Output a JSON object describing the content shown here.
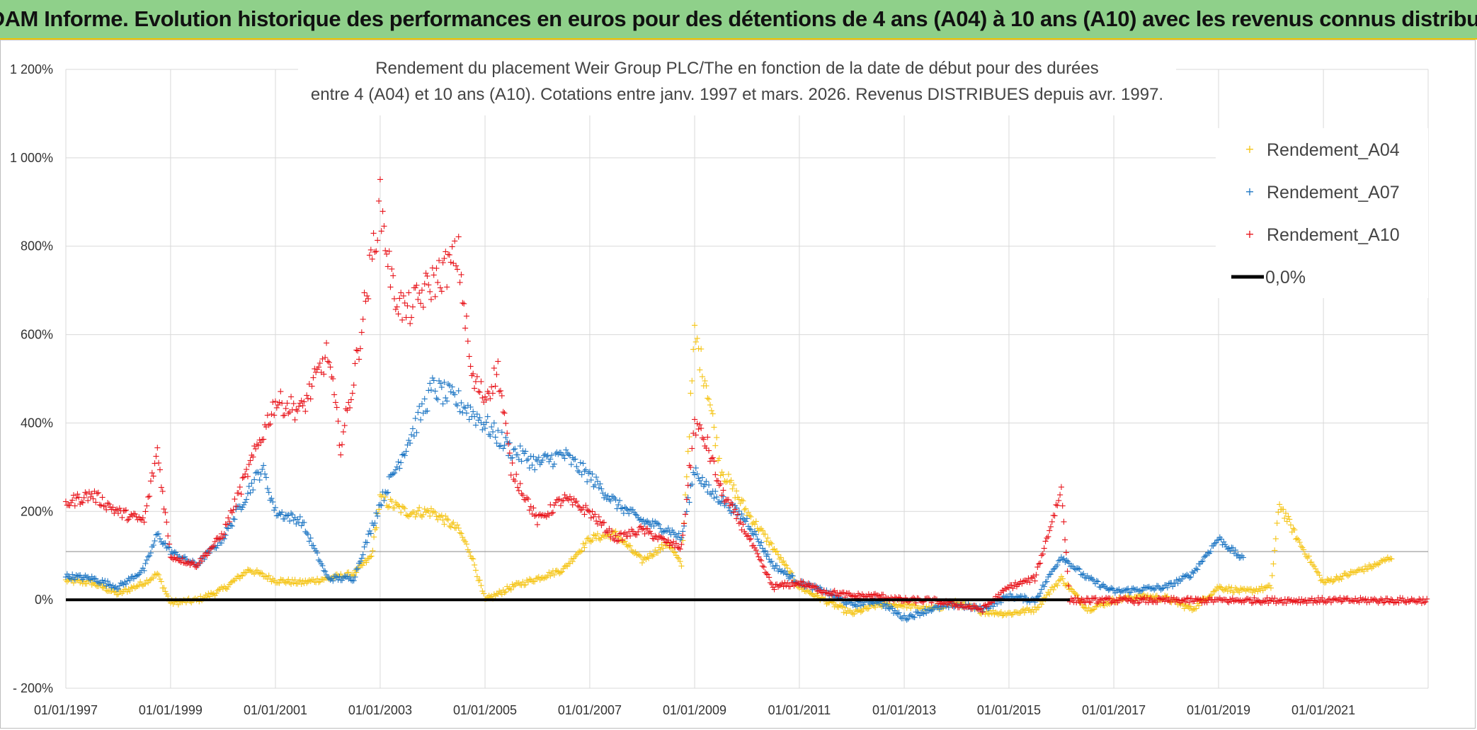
{
  "banner": {
    "title": "ADAM Informe. Evolution historique des performances en euros pour des détentions de 4 ans (A04) à 10 ans (A10) avec les revenus connus distribués"
  },
  "chart_data": {
    "type": "scatter",
    "title_line1": "Rendement du placement Weir Group PLC/The en fonction de la date de début pour des durées",
    "title_line2": "entre 4 (A04) et 10 ans (A10). Cotations entre janv. 1997 et mars. 2026. Revenus DISTRIBUES depuis avr. 1997.",
    "xlabel": "",
    "ylabel": "",
    "x_range": [
      "1997-01-01",
      "2023-01-01"
    ],
    "ylim": [
      -200,
      1200
    ],
    "y_ticks": [
      -200,
      0,
      200,
      400,
      600,
      800,
      1000,
      1200
    ],
    "y_tick_labels": [
      "- 200%",
      "0%",
      "200%",
      "400%",
      "600%",
      "800%",
      "1 000%",
      "1 200%"
    ],
    "x_tick_labels": [
      "01/01/1997",
      "01/01/1999",
      "01/01/2001",
      "01/01/2003",
      "01/01/2005",
      "01/01/2007",
      "01/01/2009",
      "01/01/2011",
      "01/01/2013",
      "01/01/2015",
      "01/01/2017",
      "01/01/2019",
      "01/01/2021"
    ],
    "grid": true,
    "legend_position": "top-right",
    "series": [
      {
        "name": "Rendement_A04",
        "color": "#f5c518",
        "points": [
          [
            "1997-01-01",
            45
          ],
          [
            "1997-07-01",
            40
          ],
          [
            "1998-01-01",
            15
          ],
          [
            "1998-07-01",
            40
          ],
          [
            "1998-10-01",
            60
          ],
          [
            "1999-01-01",
            -5
          ],
          [
            "1999-07-01",
            0
          ],
          [
            "2000-01-01",
            25
          ],
          [
            "2000-07-01",
            70
          ],
          [
            "2001-01-01",
            45
          ],
          [
            "2001-07-01",
            40
          ],
          [
            "2002-01-01",
            50
          ],
          [
            "2002-07-01",
            60
          ],
          [
            "2002-11-01",
            100
          ],
          [
            "2003-01-01",
            230
          ],
          [
            "2003-07-01",
            200
          ],
          [
            "2004-01-01",
            200
          ],
          [
            "2004-07-01",
            160
          ],
          [
            "2004-10-01",
            100
          ],
          [
            "2005-01-01",
            0
          ],
          [
            "2005-07-01",
            30
          ],
          [
            "2006-01-01",
            50
          ],
          [
            "2006-07-01",
            70
          ],
          [
            "2007-01-01",
            140
          ],
          [
            "2007-07-01",
            150
          ],
          [
            "2008-01-01",
            90
          ],
          [
            "2008-07-01",
            130
          ],
          [
            "2008-10-01",
            80
          ],
          [
            "2009-01-01",
            600
          ],
          [
            "2009-04-01",
            480
          ],
          [
            "2009-07-01",
            300
          ],
          [
            "2010-01-01",
            200
          ],
          [
            "2010-07-01",
            120
          ],
          [
            "2011-01-01",
            30
          ],
          [
            "2011-07-01",
            0
          ],
          [
            "2012-01-01",
            -30
          ],
          [
            "2012-07-01",
            -10
          ],
          [
            "2013-01-01",
            -10
          ],
          [
            "2013-07-01",
            -20
          ],
          [
            "2014-01-01",
            -5
          ],
          [
            "2014-07-01",
            -25
          ],
          [
            "2015-01-01",
            -30
          ],
          [
            "2015-07-01",
            -20
          ],
          [
            "2016-01-01",
            50
          ],
          [
            "2016-07-01",
            -20
          ],
          [
            "2017-01-01",
            0
          ],
          [
            "2017-07-01",
            10
          ],
          [
            "2018-01-01",
            5
          ],
          [
            "2018-07-01",
            -20
          ],
          [
            "2019-01-01",
            30
          ],
          [
            "2019-07-01",
            20
          ],
          [
            "2020-01-01",
            30
          ],
          [
            "2020-03-01",
            220
          ],
          [
            "2020-07-01",
            140
          ],
          [
            "2021-01-01",
            40
          ],
          [
            "2021-07-01",
            60
          ],
          [
            "2022-01-01",
            80
          ],
          [
            "2022-05-01",
            100
          ]
        ]
      },
      {
        "name": "Rendement_A07",
        "color": "#1f77c4",
        "points": [
          [
            "1997-01-01",
            55
          ],
          [
            "1997-07-01",
            50
          ],
          [
            "1998-01-01",
            30
          ],
          [
            "1998-07-01",
            70
          ],
          [
            "1998-10-01",
            150
          ],
          [
            "1999-01-01",
            110
          ],
          [
            "1999-07-01",
            80
          ],
          [
            "2000-01-01",
            140
          ],
          [
            "2000-07-01",
            250
          ],
          [
            "2000-10-01",
            300
          ],
          [
            "2001-01-01",
            200
          ],
          [
            "2001-07-01",
            180
          ],
          [
            "2002-01-01",
            50
          ],
          [
            "2002-07-01",
            50
          ],
          [
            "2003-01-01",
            220
          ],
          [
            "2003-07-01",
            350
          ],
          [
            "2004-01-01",
            480
          ],
          [
            "2004-07-01",
            450
          ],
          [
            "2005-01-01",
            400
          ],
          [
            "2005-07-01",
            340
          ],
          [
            "2006-01-01",
            310
          ],
          [
            "2006-07-01",
            330
          ],
          [
            "2007-01-01",
            280
          ],
          [
            "2007-07-01",
            220
          ],
          [
            "2008-01-01",
            180
          ],
          [
            "2008-07-01",
            160
          ],
          [
            "2008-10-01",
            140
          ],
          [
            "2009-01-01",
            300
          ],
          [
            "2009-04-01",
            250
          ],
          [
            "2009-07-01",
            230
          ],
          [
            "2010-01-01",
            180
          ],
          [
            "2010-07-01",
            80
          ],
          [
            "2011-01-01",
            40
          ],
          [
            "2011-07-01",
            20
          ],
          [
            "2012-01-01",
            -10
          ],
          [
            "2012-07-01",
            0
          ],
          [
            "2013-01-01",
            -40
          ],
          [
            "2013-07-01",
            -20
          ],
          [
            "2014-01-01",
            -10
          ],
          [
            "2014-07-01",
            -20
          ],
          [
            "2015-01-01",
            10
          ],
          [
            "2015-07-01",
            0
          ],
          [
            "2016-01-01",
            100
          ],
          [
            "2016-07-01",
            50
          ],
          [
            "2017-01-01",
            20
          ],
          [
            "2017-07-01",
            25
          ],
          [
            "2018-01-01",
            30
          ],
          [
            "2018-07-01",
            60
          ],
          [
            "2019-01-01",
            140
          ],
          [
            "2019-07-01",
            90
          ]
        ]
      },
      {
        "name": "Rendement_A10",
        "color": "#e8141b",
        "points": [
          [
            "1997-01-01",
            220
          ],
          [
            "1997-07-01",
            240
          ],
          [
            "1998-01-01",
            200
          ],
          [
            "1998-07-01",
            180
          ],
          [
            "1998-10-01",
            340
          ],
          [
            "1999-01-01",
            100
          ],
          [
            "1999-07-01",
            80
          ],
          [
            "2000-01-01",
            150
          ],
          [
            "2000-07-01",
            300
          ],
          [
            "2001-01-01",
            450
          ],
          [
            "2001-07-01",
            430
          ],
          [
            "2002-01-01",
            560
          ],
          [
            "2002-04-01",
            350
          ],
          [
            "2002-07-01",
            500
          ],
          [
            "2003-01-01",
            900
          ],
          [
            "2003-04-01",
            700
          ],
          [
            "2003-07-01",
            650
          ],
          [
            "2004-01-01",
            720
          ],
          [
            "2004-07-01",
            780
          ],
          [
            "2004-10-01",
            500
          ],
          [
            "2005-01-01",
            460
          ],
          [
            "2005-04-01",
            520
          ],
          [
            "2005-07-01",
            300
          ],
          [
            "2006-01-01",
            180
          ],
          [
            "2006-07-01",
            230
          ],
          [
            "2007-01-01",
            200
          ],
          [
            "2007-07-01",
            140
          ],
          [
            "2008-01-01",
            160
          ],
          [
            "2008-07-01",
            130
          ],
          [
            "2008-10-01",
            120
          ],
          [
            "2009-01-01",
            400
          ],
          [
            "2009-04-01",
            350
          ],
          [
            "2009-07-01",
            250
          ],
          [
            "2010-01-01",
            150
          ],
          [
            "2010-07-01",
            30
          ],
          [
            "2011-01-01",
            40
          ],
          [
            "2011-07-01",
            20
          ],
          [
            "2012-01-01",
            10
          ],
          [
            "2012-07-01",
            10
          ],
          [
            "2013-01-01",
            0
          ],
          [
            "2013-07-01",
            0
          ],
          [
            "2014-01-01",
            -10
          ],
          [
            "2014-07-01",
            -20
          ],
          [
            "2015-01-01",
            30
          ],
          [
            "2015-07-01",
            50
          ],
          [
            "2016-01-01",
            250
          ],
          [
            "2016-03-01",
            0
          ],
          [
            "2017-01-01",
            0
          ],
          [
            "2018-01-01",
            0
          ],
          [
            "2019-01-01",
            0
          ],
          [
            "2020-01-01",
            0
          ],
          [
            "2021-01-01",
            0
          ],
          [
            "2022-01-01",
            0
          ],
          [
            "2023-01-01",
            0
          ]
        ]
      }
    ],
    "reference_line": {
      "name": "0,0%",
      "value": 0,
      "color": "#000000"
    }
  },
  "legend": [
    {
      "label": "Rendement_A04",
      "color": "#f5c518",
      "symbol": "cross"
    },
    {
      "label": "Rendement_A07",
      "color": "#1f77c4",
      "symbol": "cross"
    },
    {
      "label": "Rendement_A10",
      "color": "#e8141b",
      "symbol": "cross"
    },
    {
      "label": "0,0%",
      "color": "#000000",
      "symbol": "line"
    }
  ]
}
